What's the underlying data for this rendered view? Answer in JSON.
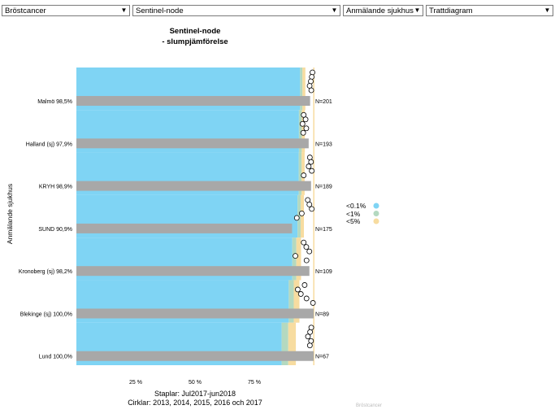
{
  "dropdowns": [
    {
      "value": "Bröstcancer"
    },
    {
      "value": "Sentinel-node"
    },
    {
      "value": "Anmälande sjukhus"
    },
    {
      "value": "Trattdiagram"
    }
  ],
  "colors": {
    "band_01": "#7fd4f4",
    "band_1": "#b4d9c0",
    "band_5": "#f7dca0",
    "bar": "#a8a8a8"
  },
  "chart_data": {
    "type": "bar",
    "title_line1": "Sentinel-node",
    "title_line2": "- slumpjämförelse",
    "ylabel": "Anmälande sjukhus",
    "xlabel_line1": "Staplar: Jul2017-jun2018",
    "xlabel_line2": "Cirklar: 2013, 2014, 2015, 2016 och 2017",
    "x_ticks": [
      "25 %",
      "50 %",
      "75 %"
    ],
    "x_tick_values": [
      25,
      50,
      75
    ],
    "xlim": [
      0,
      100
    ],
    "categories": [
      "Malmö 98,5%",
      "Halland (sj) 97,9%",
      "KRYH 98,9%",
      "SUND 90,9%",
      "Kronoberg (sj) 98,2%",
      "Blekinge (sj) 100,0%",
      "Lund 100,0%"
    ],
    "values": [
      98.5,
      97.9,
      98.9,
      90.9,
      98.2,
      100.0,
      100.0
    ],
    "n_labels": [
      "N=201",
      "N=193",
      "N=189",
      "N=175",
      "N=109",
      "N=89",
      "N=67"
    ],
    "funnel_limits": [
      {
        "p01": 94.3,
        "p1": 95.3,
        "p5": 96.5
      },
      {
        "p01": 93.8,
        "p1": 95.0,
        "p5": 96.3
      },
      {
        "p01": 93.7,
        "p1": 94.9,
        "p5": 96.2
      },
      {
        "p01": 93.2,
        "p1": 94.5,
        "p5": 95.9
      },
      {
        "p01": 91.0,
        "p1": 92.7,
        "p5": 94.7
      },
      {
        "p01": 89.5,
        "p1": 91.6,
        "p5": 94.0
      },
      {
        "p01": 86.5,
        "p1": 89.3,
        "p5": 92.5
      }
    ],
    "circles": [
      [
        99.5,
        99.2,
        98.8,
        98.3,
        99.0
      ],
      [
        95.8,
        96.6,
        95.3,
        96.9,
        95.6
      ],
      [
        98.4,
        98.9,
        97.9,
        99.2,
        95.8
      ],
      [
        97.5,
        98.2,
        99.2,
        95.0,
        92.9
      ],
      [
        95.8,
        96.9,
        98.2,
        92.3,
        97.0
      ],
      [
        96.2,
        93.3,
        94.6,
        97.0,
        99.7
      ],
      [
        99.0,
        98.5,
        97.6,
        98.9,
        98.4
      ]
    ],
    "legend": [
      {
        "label": "<0.1%",
        "color": "#7fd4f4"
      },
      {
        "label": "<1%",
        "color": "#b4d9c0"
      },
      {
        "label": "<5%",
        "color": "#f7dca0"
      }
    ],
    "footer_note": "Bröstcancer",
    "grid": false
  }
}
